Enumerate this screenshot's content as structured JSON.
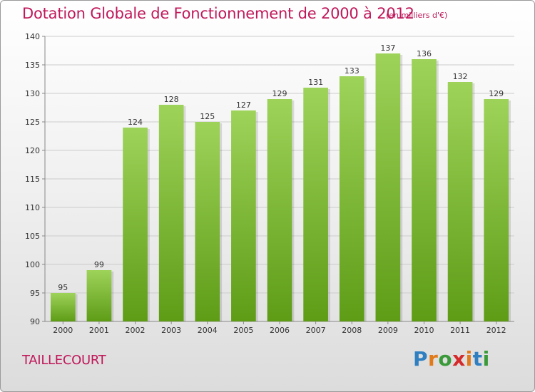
{
  "header": {
    "title": "Dotation Globale de Fonctionnement de 2000 à 2012",
    "unit": "(en milliers d'€)"
  },
  "footer": {
    "commune": "TAILLECOURT",
    "logo_letters": [
      "P",
      "r",
      "o",
      "x",
      "i",
      "t",
      "i"
    ],
    "logo_colors": [
      "#2f7fc1",
      "#e07a1a",
      "#3a9a3a",
      "#d42a2a",
      "#e07a1a",
      "#2f7fc1",
      "#3a9a3a"
    ]
  },
  "chart_data": {
    "type": "bar",
    "title": "Dotation Globale de Fonctionnement de 2000 à 2012",
    "subtitle": "(en milliers d'€)",
    "categories": [
      "2000",
      "2001",
      "2002",
      "2003",
      "2004",
      "2005",
      "2006",
      "2007",
      "2008",
      "2009",
      "2010",
      "2011",
      "2012"
    ],
    "values": [
      95,
      99,
      124,
      128,
      125,
      127,
      129,
      131,
      133,
      137,
      136,
      132,
      129
    ],
    "data_labels": [
      "95",
      "99",
      "124",
      "128",
      "125",
      "127",
      "129",
      "131",
      "133",
      "137",
      "136",
      "132",
      "129"
    ],
    "ylim": [
      90,
      140
    ],
    "yticks": [
      90,
      95,
      100,
      105,
      110,
      115,
      120,
      125,
      130,
      135,
      140
    ],
    "ytick_labels": [
      "90",
      "95",
      "100",
      "105",
      "110",
      "115",
      "120",
      "125",
      "130",
      "135",
      "140"
    ],
    "grid": true,
    "bar_color_top": "#9ed35a",
    "bar_color_bottom": "#5e9c16",
    "grid_color": "#cccccc"
  }
}
